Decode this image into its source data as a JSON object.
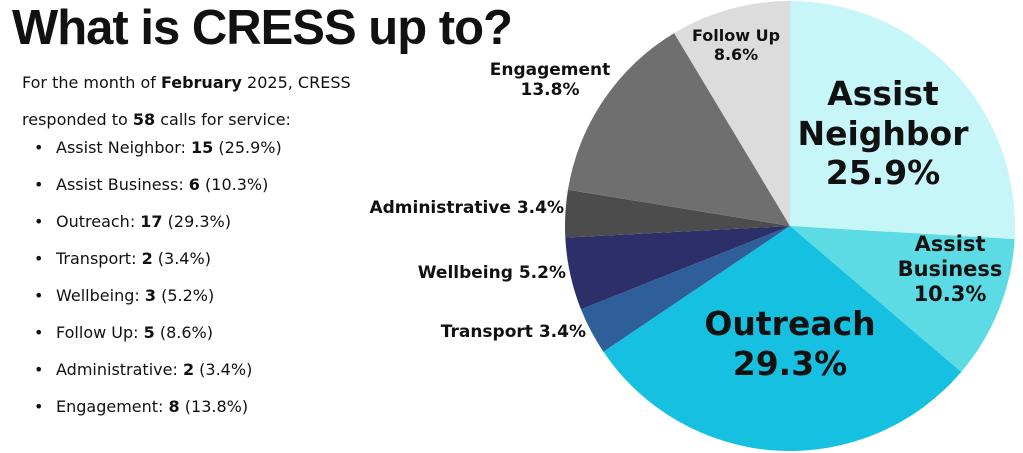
{
  "title": "What is CRESS up to?",
  "intro": [
    "For the month of ",
    "February",
    " 2025, CRESS",
    "responded to ",
    "58",
    " calls for service:"
  ],
  "items": [
    {
      "label": "Assist Neighbor: ",
      "count": 15,
      "percent": "(25.9%)"
    },
    {
      "label": "Assist Business: ",
      "count": 6,
      "percent": "(10.3%)"
    },
    {
      "label": "Outreach: ",
      "count": 17,
      "percent": "(29.3%)"
    },
    {
      "label": "Transport: ",
      "count": 2,
      "percent": "(3.4%)"
    },
    {
      "label": "Wellbeing: ",
      "count": 3,
      "percent": "(5.2%)"
    },
    {
      "label": "Follow Up: ",
      "count": 5,
      "percent": "(8.6%)"
    },
    {
      "label": "Administrative: ",
      "count": 2,
      "percent": "(3.4%)"
    },
    {
      "label": "Engagement: ",
      "count": 8,
      "percent": "(13.8%)"
    }
  ],
  "chart_data": {
    "type": "pie",
    "categories": [
      "Assist Neighbor",
      "Assist Business",
      "Outreach",
      "Transport",
      "Wellbeing",
      "Administrative",
      "Engagement",
      "Follow Up"
    ],
    "values": [
      25.9,
      10.3,
      29.3,
      3.4,
      5.2,
      3.4,
      13.8,
      8.6
    ],
    "value_labels": [
      "25.9%",
      "10.3%",
      "29.3%",
      "3.4%",
      "5.2%",
      "3.4%",
      "13.8%",
      "8.6%"
    ],
    "colors": [
      "#c6f6f8",
      "#5cdbe4",
      "#16c0e0",
      "#2f5f98",
      "#2c2f6a",
      "#4c4c4c",
      "#6f6f6f",
      "#dcdcdc"
    ]
  }
}
